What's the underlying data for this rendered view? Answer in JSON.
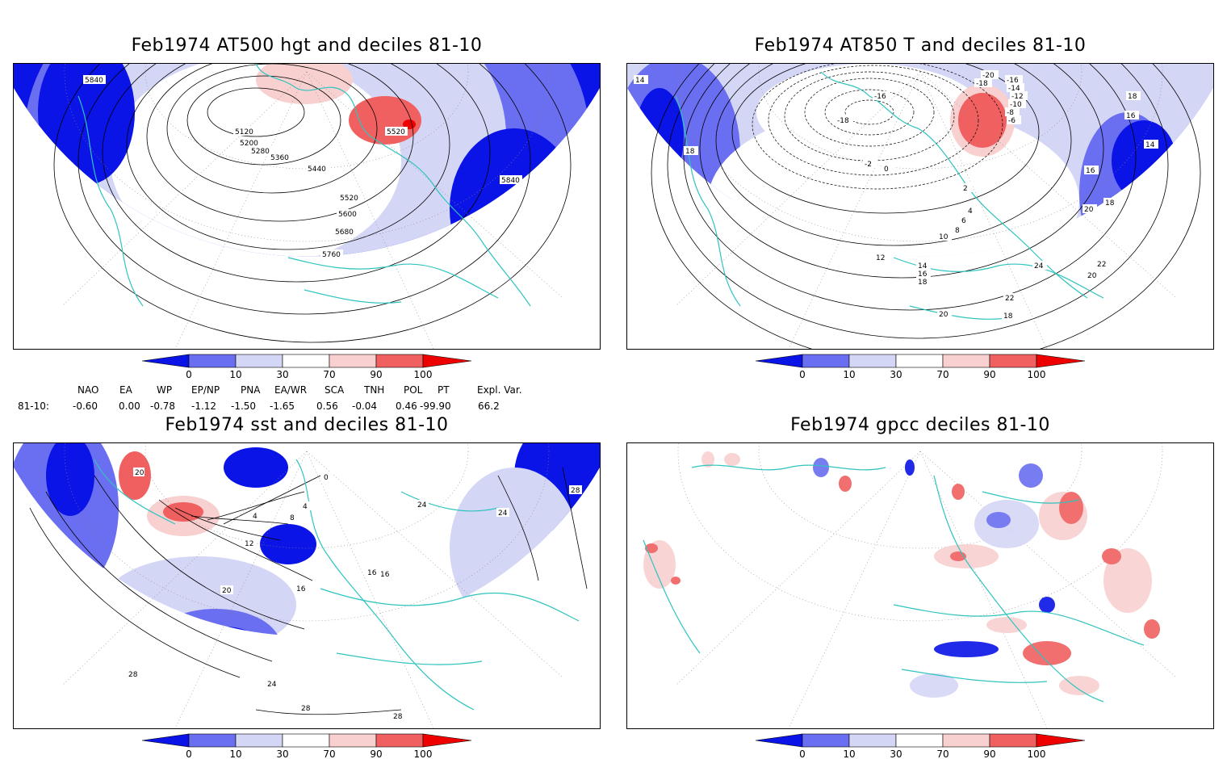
{
  "panels": [
    {
      "key": "p1",
      "title": "Feb1974 AT500 hgt and deciles 81-10",
      "contour_labels": [
        "5840",
        "5120",
        "5200",
        "5280",
        "5360",
        "5440",
        "5520",
        "5520",
        "5600",
        "5680",
        "5760",
        "5840"
      ]
    },
    {
      "key": "p2",
      "title": "Feb1974 AT850 T and deciles 81-10",
      "contour_labels": [
        "14",
        "18",
        "-20",
        "-18",
        "-16",
        "-14",
        "-12",
        "-10",
        "-18",
        "-16",
        "-8",
        "-6",
        "-2",
        "0",
        "2",
        "4",
        "6",
        "8",
        "10",
        "12",
        "14",
        "16",
        "18",
        "20",
        "22",
        "24",
        "16",
        "18",
        "14",
        "16",
        "18",
        "20",
        "22",
        "20",
        "18"
      ]
    },
    {
      "key": "p3",
      "title": "Feb1974 sst and deciles 81-10",
      "contour_labels": [
        "20",
        "0",
        "4",
        "8",
        "4",
        "12",
        "16",
        "20",
        "16",
        "24",
        "28",
        "24",
        "28",
        "28",
        "28",
        "24",
        "16"
      ]
    },
    {
      "key": "p4",
      "title": "Feb1974 gpcc deciles 81-10",
      "contour_labels": []
    }
  ],
  "colorbar": {
    "ticks": [
      "0",
      "10",
      "30",
      "70",
      "90",
      "100"
    ],
    "colors": {
      "deep_blue": "#0a14e6",
      "blue": "#6a6ef0",
      "light_blue": "#d4d6f6",
      "white": "#ffffff",
      "light_red": "#f8d0d0",
      "red": "#f06060",
      "deep_red": "#ee0000"
    }
  },
  "coastline_color": "#2fc4bf",
  "indices": {
    "headers": [
      "NAO",
      "EA",
      "WP",
      "EP/NP",
      "PNA",
      "EA/WR",
      "SCA",
      "TNH",
      "POL",
      "PT",
      "Expl. Var."
    ],
    "row_label": "81-10:",
    "values": [
      "-0.60",
      "0.00",
      "-0.78",
      "-1.12",
      "-1.50",
      "-1.65",
      "0.56",
      "-0.04",
      "0.46",
      "-99.90",
      "66.2"
    ]
  }
}
